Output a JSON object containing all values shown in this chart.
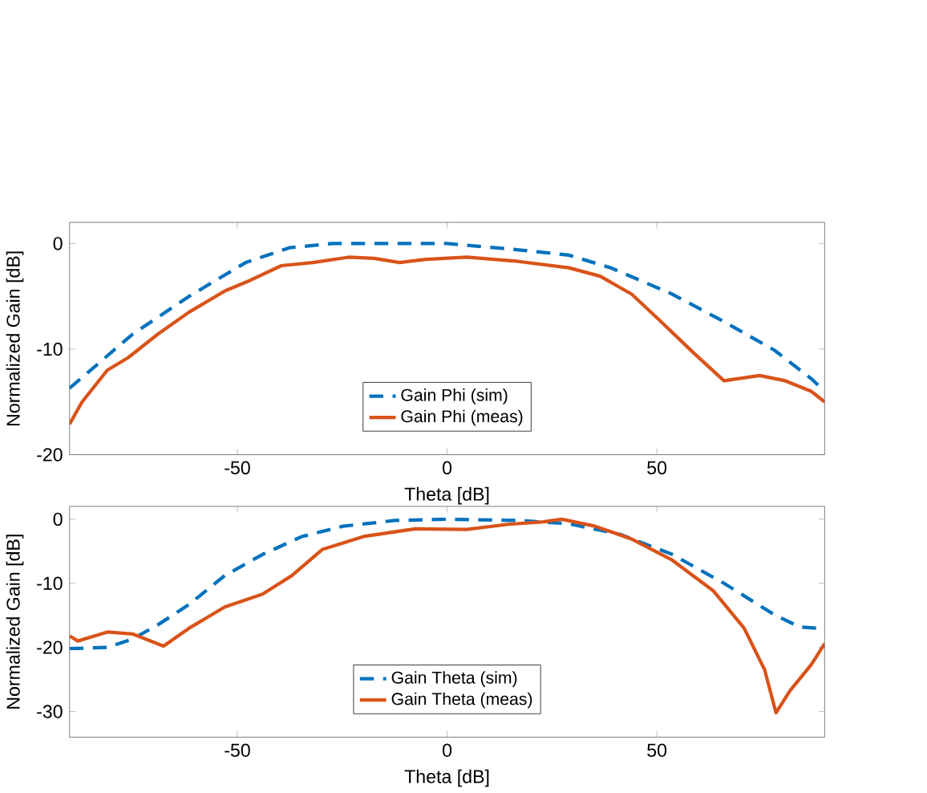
{
  "chart_data": [
    {
      "type": "line",
      "xlabel": "Theta [dB]",
      "ylabel": "Normalized Gain [dB]",
      "xlim": [
        -90,
        90
      ],
      "ylim": [
        -20,
        2
      ],
      "xticks": [
        -50,
        0,
        50
      ],
      "yticks": [
        -20,
        -10,
        0
      ],
      "grid": false,
      "legend": "bottom",
      "series": [
        {
          "name": "Gain Phi (sim)",
          "color": "#0072bd",
          "line_style": "dashed",
          "x": [
            -90,
            -75,
            -61.5,
            -48,
            -37.6,
            -27.2,
            0,
            17,
            29,
            39,
            53.7,
            66,
            78,
            86.8,
            90
          ],
          "values": [
            -13.7,
            -8.6,
            -5.0,
            -1.8,
            -0.4,
            0,
            0,
            -0.6,
            -1.1,
            -2.3,
            -4.8,
            -7.4,
            -10.1,
            -12.8,
            -14
          ]
        },
        {
          "name": "Gain Phi (meas)",
          "color": "#d95319",
          "line_style": "solid",
          "x": [
            -90,
            -87,
            -81,
            -76,
            -69,
            -61.5,
            -53,
            -47,
            -39.5,
            -32,
            -23.5,
            -17.4,
            -11.3,
            -5,
            4.7,
            17,
            29,
            36.5,
            44,
            51,
            58.6,
            66,
            74.5,
            80.6,
            86.8,
            90
          ],
          "values": [
            -17.1,
            -15,
            -12,
            -10.8,
            -8.6,
            -6.5,
            -4.5,
            -3.5,
            -2.1,
            -1.8,
            -1.3,
            -1.4,
            -1.8,
            -1.5,
            -1.3,
            -1.7,
            -2.3,
            -3.1,
            -4.8,
            -7.4,
            -10.3,
            -13,
            -12.5,
            -13,
            -14,
            -15
          ]
        }
      ]
    },
    {
      "type": "line",
      "xlabel": "Theta [dB]",
      "ylabel": "Normalized Gain [dB]",
      "xlim": [
        -90,
        90
      ],
      "ylim": [
        -34,
        2
      ],
      "xticks": [
        -50,
        0,
        50
      ],
      "yticks": [
        -30,
        -20,
        -10,
        0
      ],
      "grid": false,
      "legend": "bottom",
      "series": [
        {
          "name": "Gain Theta (sim)",
          "color": "#0072bd",
          "line_style": "dashed",
          "x": [
            -90,
            -81,
            -75,
            -69,
            -61.5,
            -53,
            -44,
            -34.6,
            -24.8,
            -12.5,
            0,
            17,
            29,
            41.4,
            53.7,
            66,
            78,
            84,
            90
          ],
          "values": [
            -20.2,
            -20,
            -18.7,
            -16.5,
            -13.3,
            -8.8,
            -5.5,
            -2.7,
            -1.1,
            -0.2,
            0,
            -0.2,
            -0.7,
            -2.4,
            -5.5,
            -10,
            -14.9,
            -16.8,
            -17.1
          ]
        },
        {
          "name": "Gain Theta (meas)",
          "color": "#d95319",
          "line_style": "solid",
          "x": [
            -90,
            -88,
            -81,
            -75,
            -67.6,
            -61.5,
            -53,
            -44,
            -37,
            -29.7,
            -19.9,
            -7.6,
            4.7,
            14.5,
            23,
            27.3,
            35.3,
            44,
            53.7,
            63.5,
            70.8,
            75.7,
            78.4,
            81.8,
            86.8,
            90
          ],
          "values": [
            -18.2,
            -19,
            -17.6,
            -17.9,
            -19.8,
            -17,
            -13.7,
            -11.7,
            -8.8,
            -4.7,
            -2.7,
            -1.5,
            -1.6,
            -0.8,
            -0.4,
            0,
            -1.1,
            -3.1,
            -6.4,
            -11.2,
            -17,
            -23.5,
            -30.2,
            -26.7,
            -22.7,
            -19.4
          ]
        }
      ]
    }
  ]
}
